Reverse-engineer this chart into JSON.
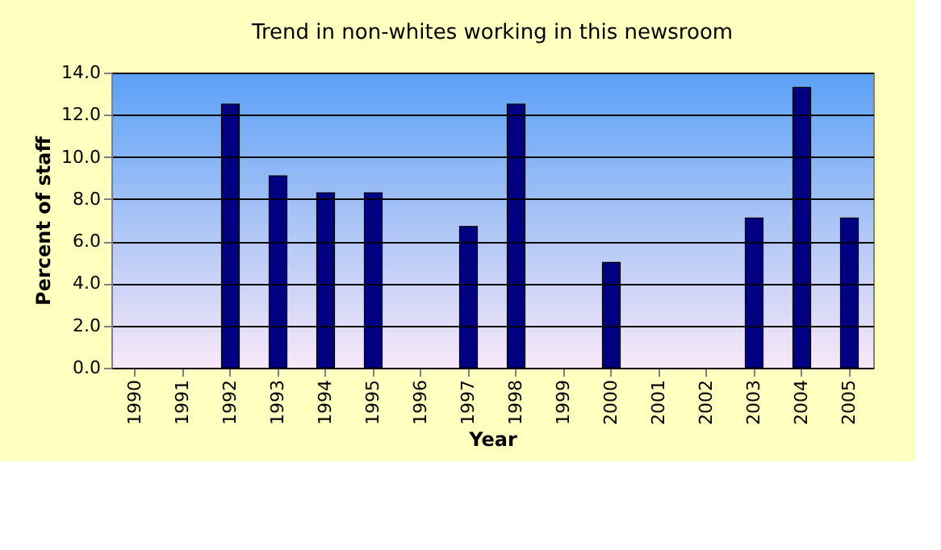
{
  "chart_data": {
    "type": "bar",
    "title": "Trend in non-whites working in this newsroom",
    "xlabel": "Year",
    "ylabel": "Percent of staff",
    "categories": [
      "1990",
      "1991",
      "1992",
      "1993",
      "1994",
      "1995",
      "1996",
      "1997",
      "1998",
      "1999",
      "2000",
      "2001",
      "2002",
      "2003",
      "2004",
      "2005"
    ],
    "series": [
      {
        "color": "#000080",
        "values": [
          null,
          null,
          12.5,
          9.1,
          8.3,
          8.3,
          null,
          6.7,
          12.5,
          null,
          5.0,
          null,
          null,
          7.1,
          13.3,
          7.1
        ]
      }
    ],
    "ylim": [
      0,
      14
    ],
    "yticks": [
      {
        "value": 0,
        "label": "0.0"
      },
      {
        "value": 2,
        "label": "2.0"
      },
      {
        "value": 4,
        "label": "4.0"
      },
      {
        "value": 6,
        "label": "6.0"
      },
      {
        "value": 8,
        "label": "8.0"
      },
      {
        "value": 10,
        "label": "10.0"
      },
      {
        "value": 12,
        "label": "12.0"
      },
      {
        "value": 14,
        "label": "14.0"
      }
    ],
    "grid": "y",
    "legend": false
  }
}
